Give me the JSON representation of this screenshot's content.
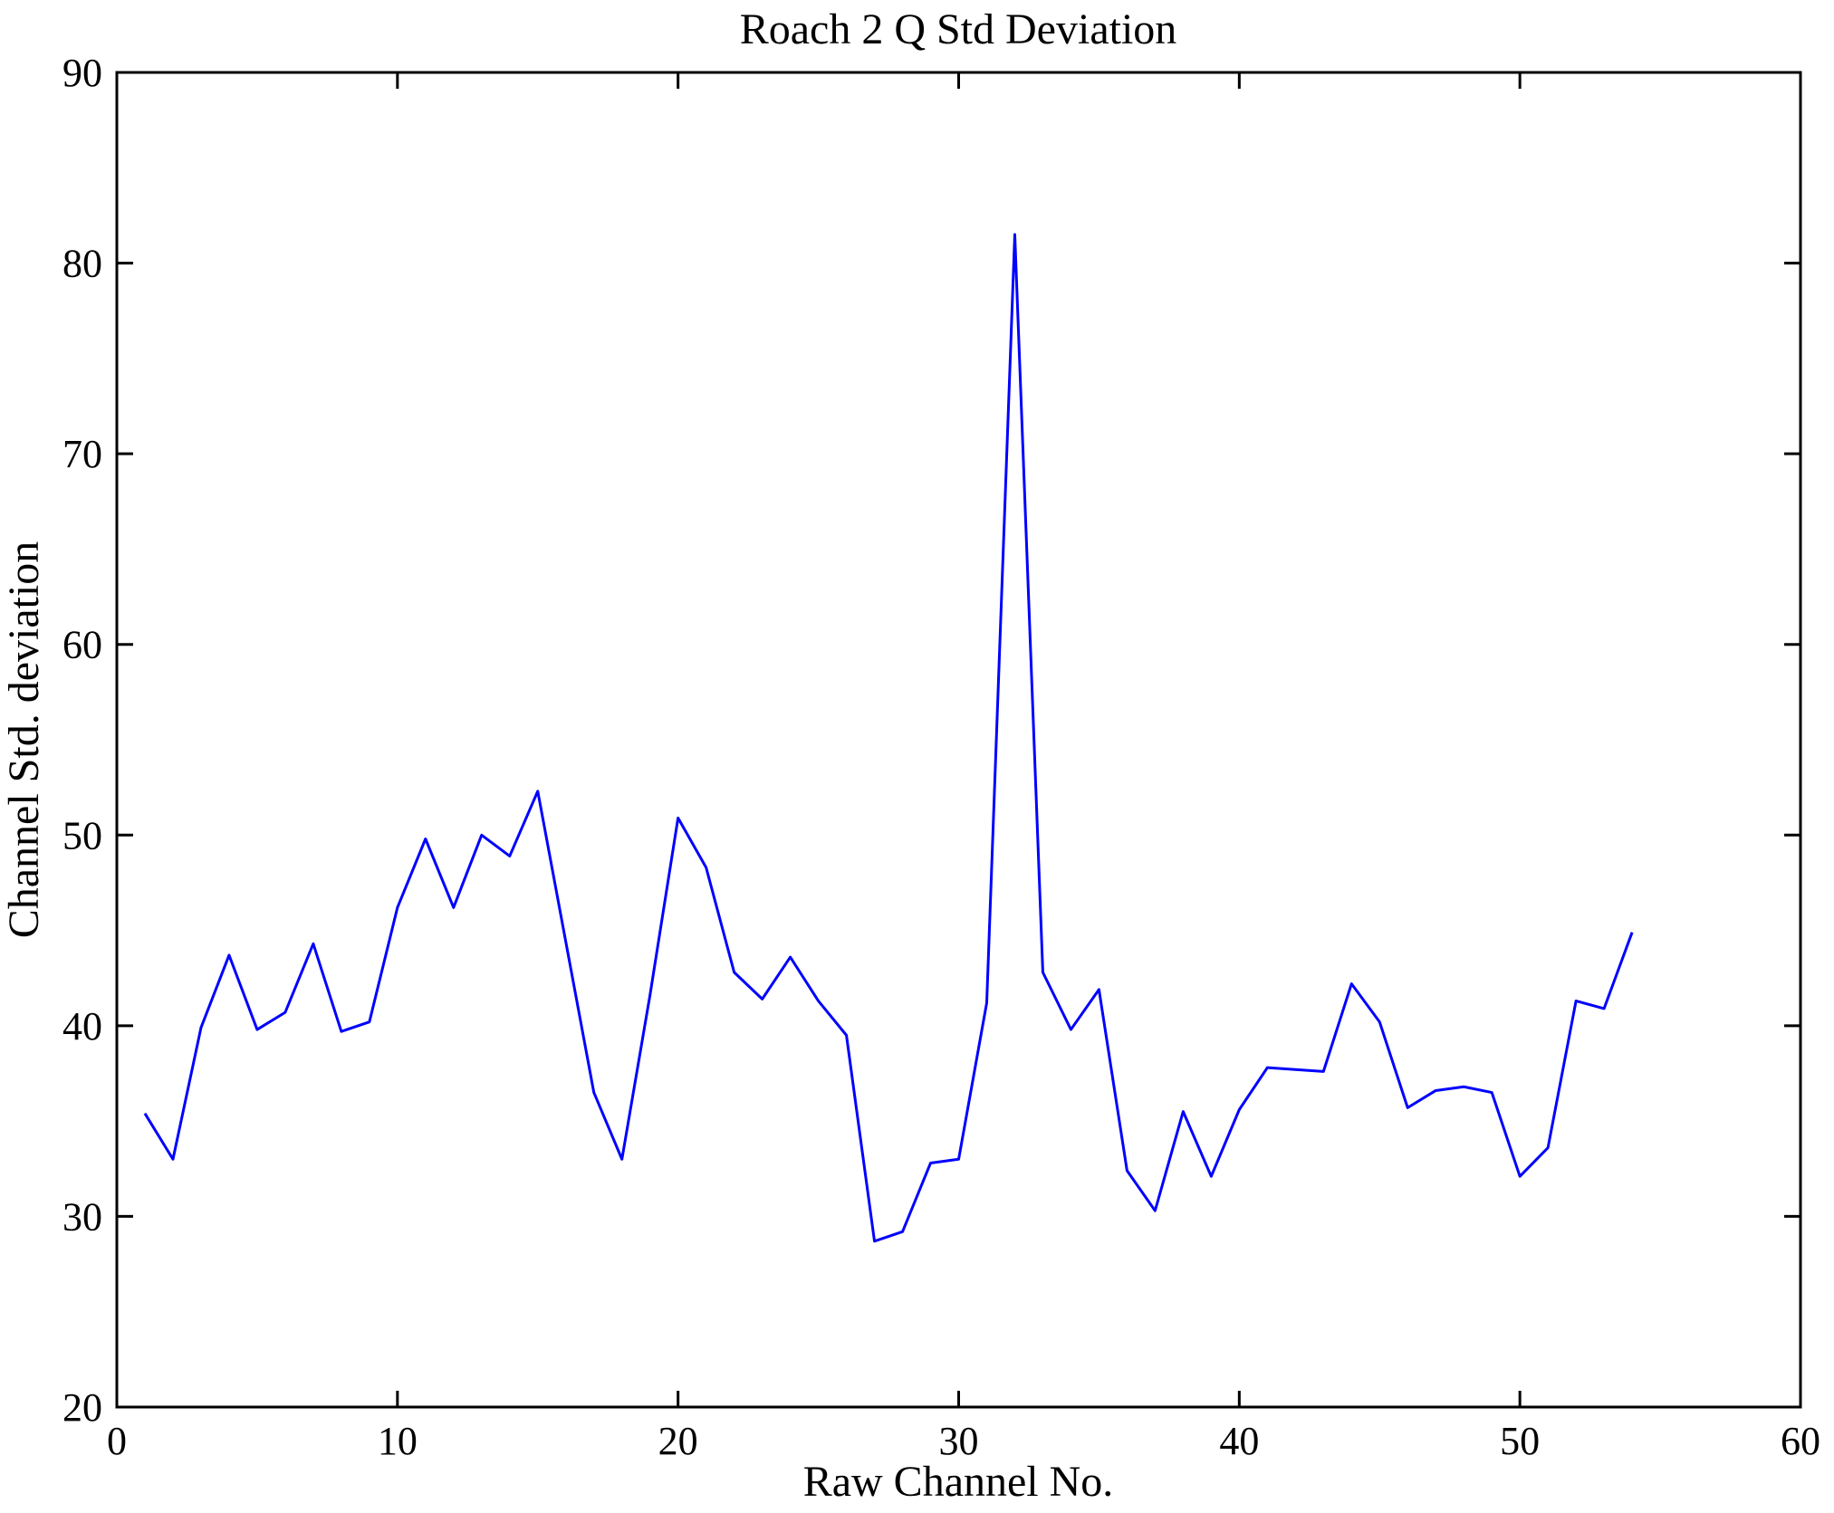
{
  "figure": {
    "title": "Roach 2 Q Std Deviation",
    "xlabel": "Raw Channel No.",
    "ylabel": "Channel Std. deviation"
  },
  "chart_data": {
    "type": "line",
    "title": "Roach 2 Q Std Deviation",
    "xlabel": "Raw Channel No.",
    "ylabel": "Channel Std. deviation",
    "x": [
      1,
      2,
      3,
      4,
      5,
      6,
      7,
      8,
      9,
      10,
      11,
      12,
      13,
      14,
      15,
      16,
      17,
      18,
      19,
      20,
      21,
      22,
      23,
      24,
      25,
      26,
      27,
      28,
      29,
      30,
      31,
      32,
      33,
      34,
      35,
      36,
      37,
      38,
      39,
      40,
      41,
      42,
      43,
      44,
      45,
      46,
      47,
      48,
      49,
      50,
      51,
      52,
      53,
      54
    ],
    "values": [
      35.4,
      33.0,
      39.9,
      43.7,
      39.8,
      40.7,
      44.3,
      39.7,
      40.2,
      46.2,
      49.8,
      46.2,
      50.0,
      48.9,
      52.3,
      44.4,
      36.5,
      33.0,
      41.6,
      50.9,
      48.3,
      42.8,
      41.4,
      43.6,
      41.3,
      39.5,
      28.7,
      29.2,
      32.8,
      33.0,
      41.2,
      81.5,
      42.8,
      39.8,
      41.9,
      32.4,
      30.3,
      35.5,
      32.1,
      35.6,
      37.8,
      37.7,
      37.6,
      42.2,
      40.2,
      35.7,
      36.6,
      36.8,
      36.5,
      32.1,
      33.6,
      41.3,
      40.9,
      44.9
    ],
    "xlim": [
      0,
      60
    ],
    "ylim": [
      20,
      90
    ],
    "xticks": [
      0,
      10,
      20,
      30,
      40,
      50,
      60
    ],
    "yticks": [
      20,
      30,
      40,
      50,
      60,
      70,
      80,
      90
    ],
    "grid": false,
    "legend_position": "none",
    "line_color": "#0000ff",
    "axis_color": "#000000",
    "background_color": "#ffffff"
  }
}
